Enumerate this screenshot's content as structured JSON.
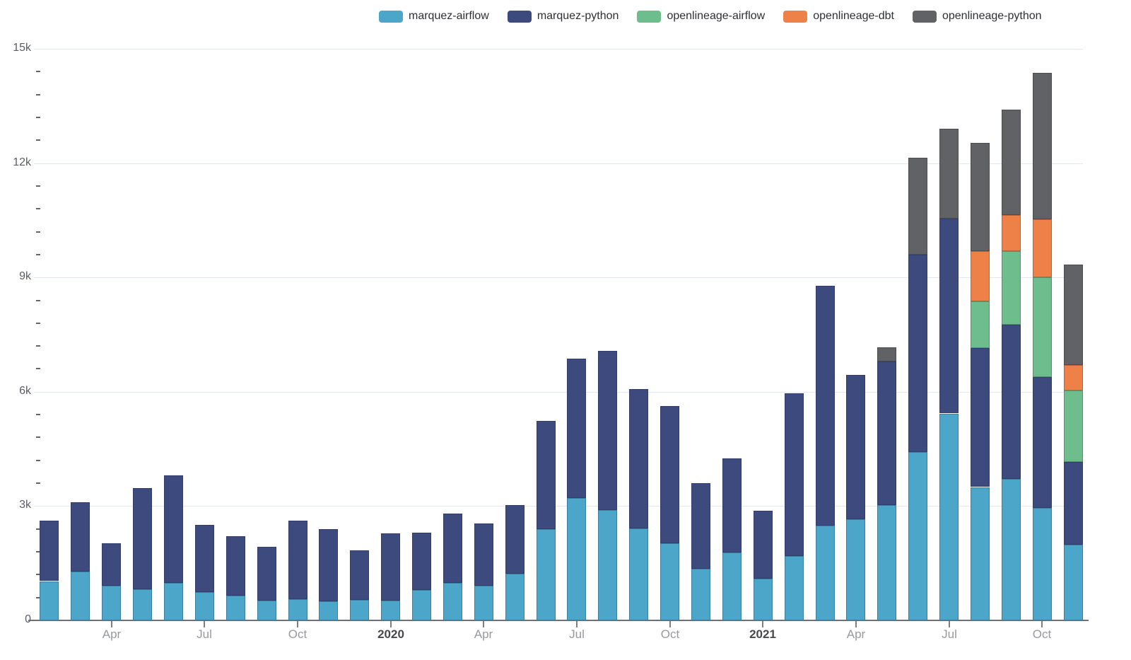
{
  "legend": {
    "items": [
      {
        "label": "marquez-airflow",
        "color": "#4ba6c9"
      },
      {
        "label": "marquez-python",
        "color": "#3d4a7d"
      },
      {
        "label": "openlineage-airflow",
        "color": "#6dbd8d"
      },
      {
        "label": "openlineage-dbt",
        "color": "#ee8148"
      },
      {
        "label": "openlineage-python",
        "color": "#606266"
      }
    ]
  },
  "chart_data": {
    "type": "bar",
    "stacked": true,
    "title": "",
    "xlabel": "",
    "ylabel": "",
    "ylim": [
      0,
      15000
    ],
    "grid": true,
    "legend_position": "top",
    "x": [
      "2019-02",
      "2019-03",
      "2019-04",
      "2019-05",
      "2019-06",
      "2019-07",
      "2019-08",
      "2019-09",
      "2019-10",
      "2019-11",
      "2019-12",
      "2020-01",
      "2020-02",
      "2020-03",
      "2020-04",
      "2020-05",
      "2020-06",
      "2020-07",
      "2020-08",
      "2020-09",
      "2020-10",
      "2020-11",
      "2020-12",
      "2021-01",
      "2021-02",
      "2021-03",
      "2021-04",
      "2021-05",
      "2021-06",
      "2021-07",
      "2021-08",
      "2021-09",
      "2021-10",
      "2021-11"
    ],
    "x_tick_labels": [
      {
        "index": 2,
        "label": "Apr",
        "bold": false
      },
      {
        "index": 5,
        "label": "Jul",
        "bold": false
      },
      {
        "index": 8,
        "label": "Oct",
        "bold": false
      },
      {
        "index": 11,
        "label": "2020",
        "bold": true
      },
      {
        "index": 14,
        "label": "Apr",
        "bold": false
      },
      {
        "index": 17,
        "label": "Jul",
        "bold": false
      },
      {
        "index": 20,
        "label": "Oct",
        "bold": false
      },
      {
        "index": 23,
        "label": "2021",
        "bold": true
      },
      {
        "index": 26,
        "label": "Apr",
        "bold": false
      },
      {
        "index": 29,
        "label": "Jul",
        "bold": false
      },
      {
        "index": 32,
        "label": "Oct",
        "bold": false
      }
    ],
    "y_ticks": [
      {
        "value": 0,
        "label": "0"
      },
      {
        "value": 3000,
        "label": "3k"
      },
      {
        "value": 6000,
        "label": "6k"
      },
      {
        "value": 9000,
        "label": "9k"
      },
      {
        "value": 12000,
        "label": "12k"
      },
      {
        "value": 15000,
        "label": "15k"
      }
    ],
    "y_minor_tick_interval": 600,
    "series": [
      {
        "name": "marquez-airflow",
        "color": "#4ba6c9",
        "values": [
          1030,
          1280,
          905,
          810,
          985,
          740,
          655,
          515,
          565,
          500,
          535,
          520,
          795,
          985,
          905,
          1230,
          2405,
          3210,
          2890,
          2420,
          2030,
          1360,
          1790,
          1100,
          1690,
          2480,
          2660,
          3030,
          4420,
          5430,
          3500,
          3710,
          2950,
          1980
        ]
      },
      {
        "name": "marquez-python",
        "color": "#3d4a7d",
        "values": [
          1580,
          1825,
          1125,
          2655,
          2815,
          1760,
          1555,
          1425,
          2055,
          1905,
          1300,
          1770,
          1515,
          1810,
          1630,
          1795,
          2840,
          3660,
          4185,
          3645,
          3600,
          2245,
          2470,
          1780,
          4270,
          6310,
          3780,
          3770,
          5180,
          5120,
          3640,
          4050,
          3440,
          2180
        ]
      },
      {
        "name": "openlineage-airflow",
        "color": "#6dbd8d",
        "values": [
          0,
          0,
          0,
          0,
          0,
          0,
          0,
          0,
          0,
          0,
          0,
          0,
          0,
          0,
          0,
          0,
          0,
          0,
          0,
          0,
          0,
          0,
          0,
          0,
          0,
          0,
          0,
          0,
          0,
          0,
          1230,
          1930,
          2620,
          1870
        ]
      },
      {
        "name": "openlineage-dbt",
        "color": "#ee8148",
        "values": [
          0,
          0,
          0,
          0,
          0,
          0,
          0,
          0,
          0,
          0,
          0,
          0,
          0,
          0,
          0,
          0,
          0,
          0,
          0,
          0,
          0,
          0,
          0,
          0,
          0,
          0,
          0,
          0,
          0,
          0,
          1320,
          950,
          1520,
          670
        ]
      },
      {
        "name": "openlineage-python",
        "color": "#606266",
        "values": [
          0,
          0,
          0,
          0,
          0,
          0,
          0,
          0,
          0,
          0,
          0,
          0,
          0,
          0,
          0,
          0,
          0,
          0,
          0,
          0,
          0,
          0,
          0,
          0,
          0,
          0,
          0,
          360,
          2550,
          2350,
          2840,
          2760,
          3840,
          2640
        ]
      }
    ]
  },
  "colors": {
    "background": "#ffffff",
    "gridline": "#e2e6f1",
    "axis_line": "#6e7079",
    "y_label": "#5b5d64",
    "x_label": "#97999f",
    "x_label_bold": "#47484c",
    "legend_text": "#2e2f33"
  }
}
